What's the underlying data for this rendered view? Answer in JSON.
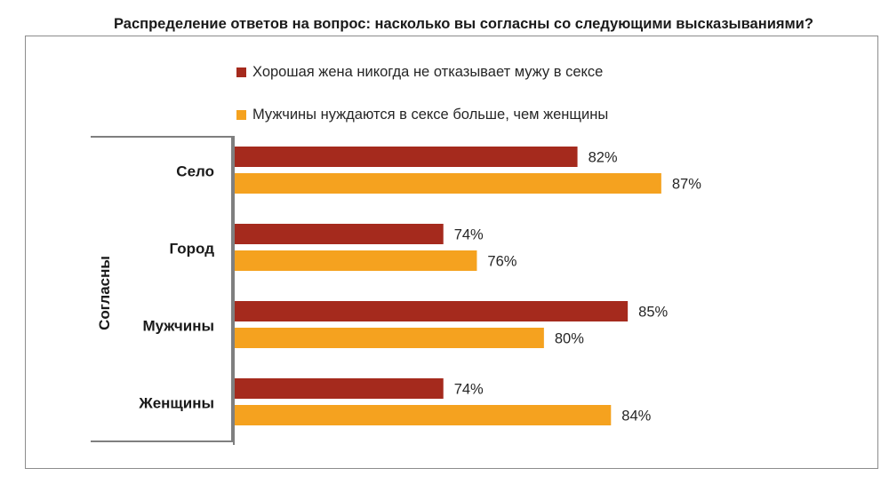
{
  "chart_data": {
    "type": "bar",
    "orientation": "horizontal",
    "title": "Распределение ответов на вопрос: насколько вы согласны со следующими высказываниями?",
    "group_label": "Согласны",
    "categories": [
      "Село",
      "Город",
      "Мужчины",
      "Женщины"
    ],
    "series": [
      {
        "name": "Хорошая жена никогда не отказывает мужу в сексе",
        "values": [
          82,
          74,
          85,
          74
        ],
        "labels": [
          "82%",
          "74%",
          "85%",
          "74%"
        ],
        "color": "#a52a1d"
      },
      {
        "name": "Мужчины нуждаются в сексе больше, чем женщины",
        "values": [
          87,
          76,
          80,
          84
        ],
        "labels": [
          "87%",
          "76%",
          "80%",
          "84%"
        ],
        "color": "#f5a21f"
      }
    ],
    "xlim": [
      61.5,
      100
    ],
    "legend_position": "top",
    "grid": false
  }
}
